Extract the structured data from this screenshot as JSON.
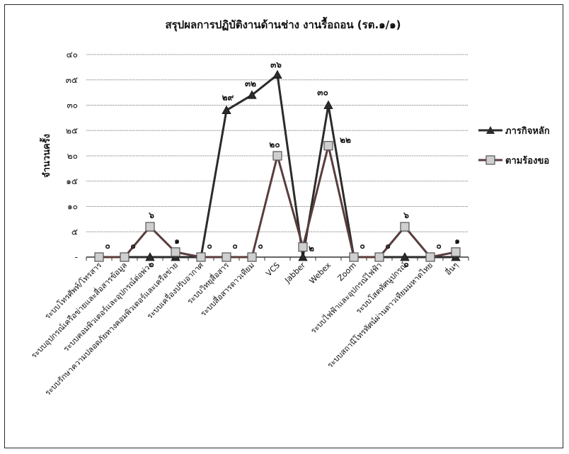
{
  "chart_data": {
    "type": "line",
    "title": "สรุปผลการปฏิบัติงานด้านช่าง งานรื้อถอน (รต.๑/๑)",
    "xlabel": "",
    "ylabel": "จำนวนครั้ง",
    "ylim": [
      0,
      40
    ],
    "yticks": [
      0,
      5,
      10,
      15,
      20,
      25,
      30,
      35,
      40
    ],
    "ytick_labels": [
      "-",
      "๕",
      "๑๐",
      "๑๕",
      "๒๐",
      "๒๕",
      "๓๐",
      "๓๕",
      "๔๐"
    ],
    "grid": true,
    "legend_position": "right",
    "categories": [
      "ระบบโทรศัพท์/โทรสาร",
      "ระบบอุปกรณ์เครือข่ายและสื่อสารข้อมูล",
      "ระบบคอมพิวเตอร์และอุปกรณ์ต่อพ่วง",
      "ระบบรักษาความปลอดภัยทางคอมพิวเตอร์และเครือข่าย",
      "ระบบเครื่องปรับอากาศ",
      "ระบบวิทยุสื่อสาร",
      "ระบบสื่อสารดาวเทียม",
      "VCS",
      "Jabber",
      "Webex",
      "Zoom",
      "ระบบไฟฟ้าและอุปกรณ์ไฟฟ้า",
      "ระบบโสตทัศนูปกรณ์",
      "ระบบสถานีโทรทัศน์ผ่านดาวเทียมมหาดไทย",
      "อื่นๆ"
    ],
    "series": [
      {
        "name": "ภารกิจหลัก",
        "marker": "triangle",
        "color": "#2b2b2b",
        "values": [
          0,
          0,
          0,
          0,
          0,
          29,
          32,
          36,
          0,
          30,
          0,
          0,
          0,
          0,
          0
        ],
        "labels": [
          "",
          "",
          "๐",
          "",
          "",
          "๒๙",
          "๓๒",
          "๓๖",
          "",
          "๓๐",
          "",
          "",
          "๐",
          "",
          ""
        ]
      },
      {
        "name": "ตามร้องขอ",
        "marker": "square",
        "color": "#5a3d3d",
        "values": [
          0,
          0,
          6,
          1,
          0,
          0,
          0,
          20,
          2,
          22,
          0,
          0,
          6,
          0,
          1
        ],
        "labels": [
          "๐",
          "๐",
          "๖",
          "๑",
          "๐",
          "๐",
          "๐",
          "๒๐",
          "๒",
          "๒๒",
          "๐",
          "๐",
          "๖",
          "๐",
          "๑"
        ]
      }
    ]
  }
}
